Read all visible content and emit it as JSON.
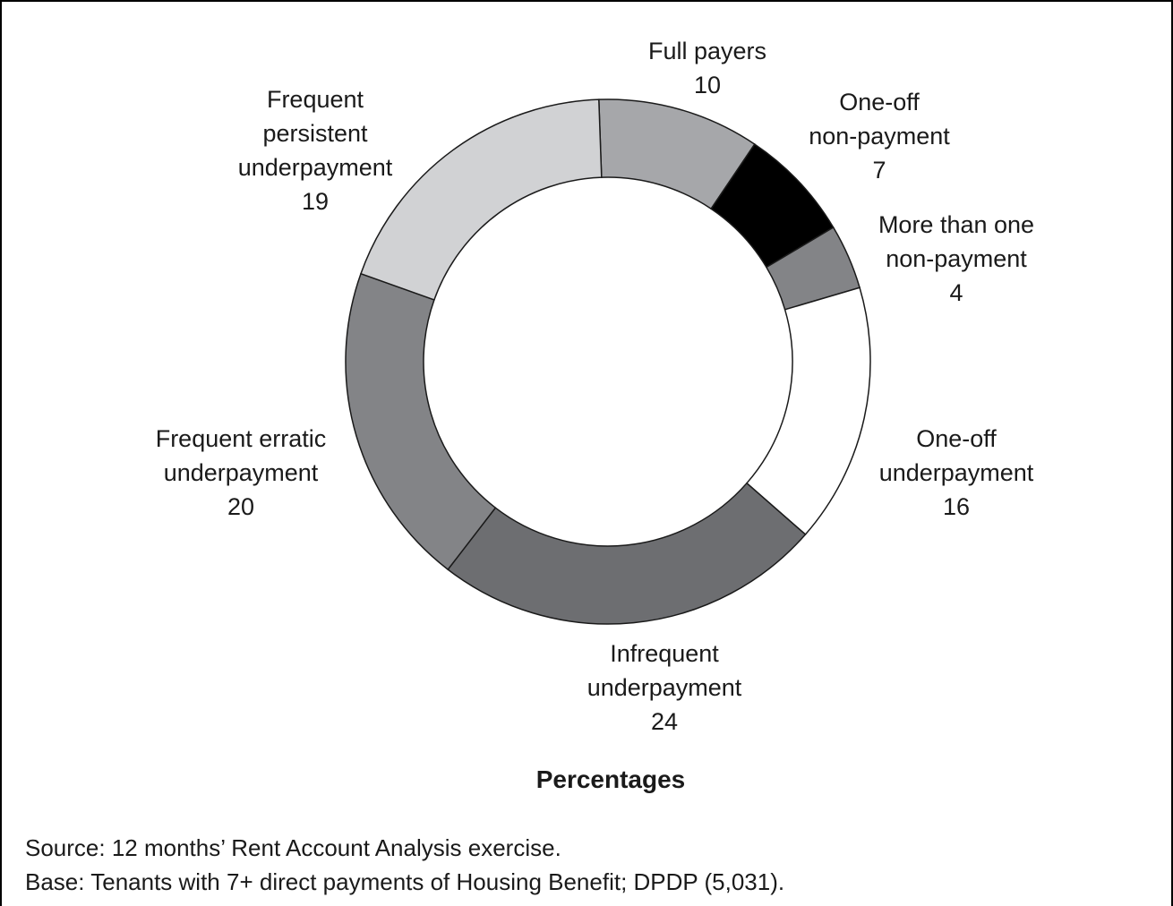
{
  "chart_data": {
    "type": "pie",
    "donut": true,
    "xlabel": "Percentages",
    "slices": [
      {
        "label": [
          "Full payers"
        ],
        "value": 10,
        "color": "#a6a7aa"
      },
      {
        "label": [
          "One-off",
          "non-payment"
        ],
        "value": 7,
        "color": "#000000"
      },
      {
        "label": [
          "More than one",
          "non-payment"
        ],
        "value": 4,
        "color": "#838487"
      },
      {
        "label": [
          "One-off",
          "underpayment"
        ],
        "value": 16,
        "color": "#ffffff"
      },
      {
        "label": [
          "Infrequent",
          "underpayment"
        ],
        "value": 24,
        "color": "#6d6e71"
      },
      {
        "label": [
          "Frequent erratic",
          "underpayment"
        ],
        "value": 20,
        "color": "#838487"
      },
      {
        "label": [
          "Frequent",
          "persistent",
          "underpayment"
        ],
        "value": 19,
        "color": "#d1d2d4"
      }
    ]
  },
  "notes": {
    "source": "Source: 12 months’ Rent Account Analysis exercise.",
    "base": "Base: Tenants with 7+ direct payments of Housing Benefit; DPDP (5,031)."
  }
}
